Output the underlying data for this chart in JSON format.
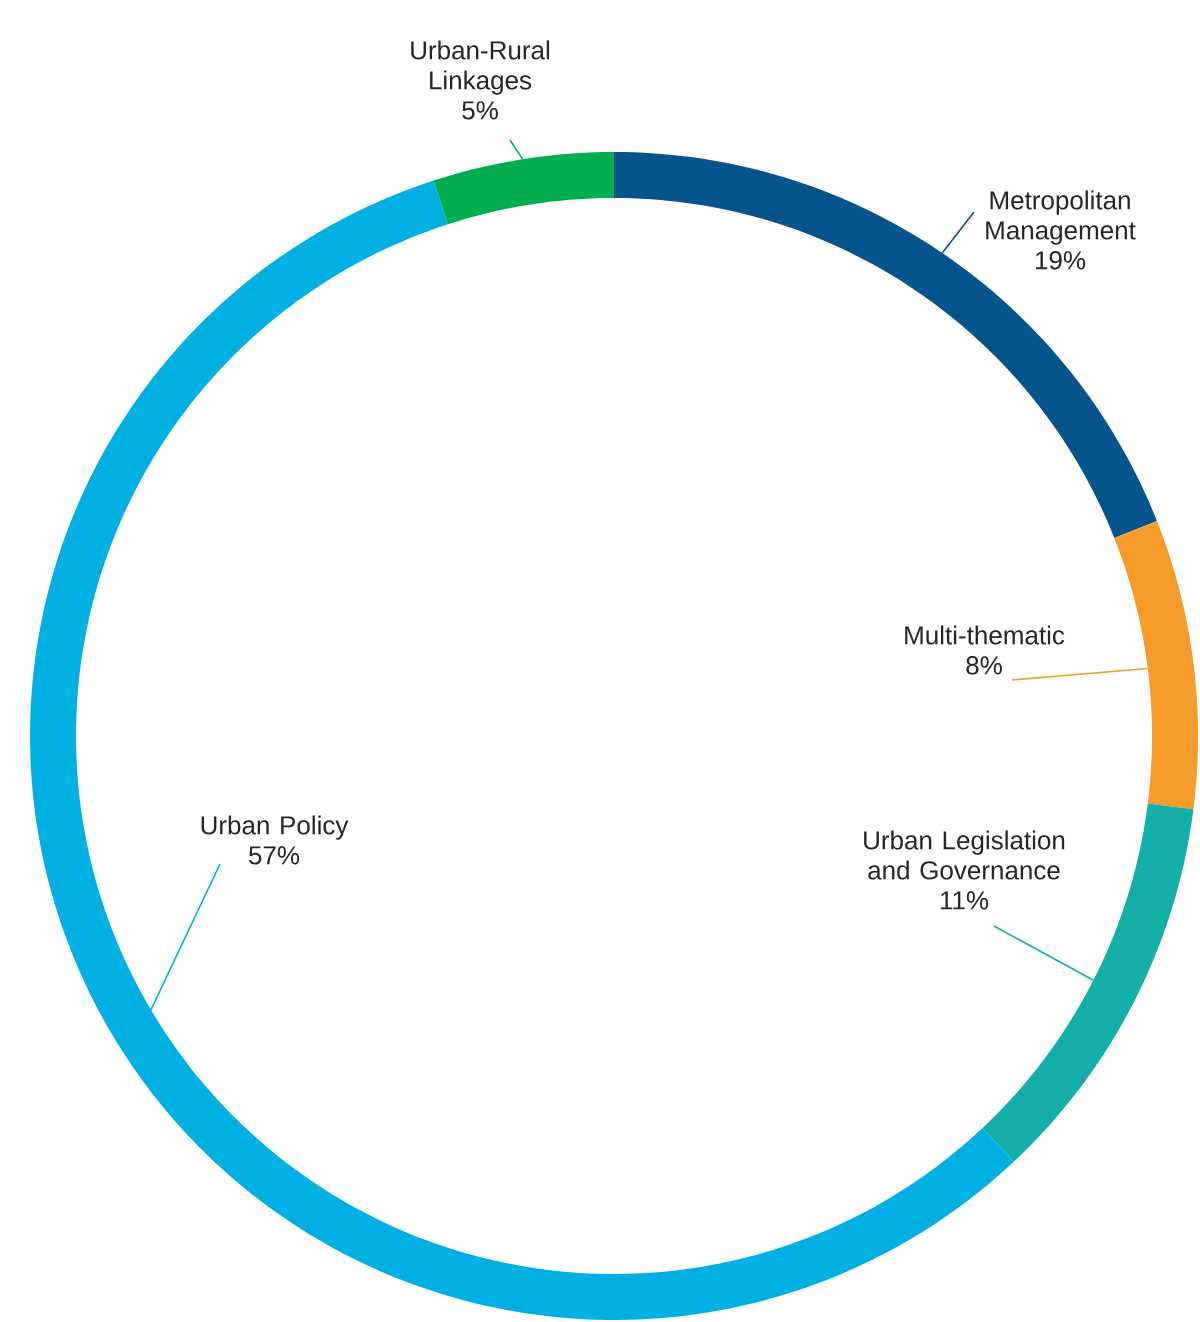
{
  "chart_data": {
    "type": "donut",
    "categories": [
      "Metropolitan Management",
      "Multi-thematic",
      "Urban Legislation and Governance",
      "Urban Policy",
      "Urban-Rural Linkages"
    ],
    "values": [
      19,
      8,
      11,
      57,
      5
    ],
    "value_labels": [
      "19%",
      "8%",
      "11%",
      "57%",
      "5%"
    ],
    "colors": [
      "#05548c",
      "#f59c2a",
      "#13afa8",
      "#00b0e3",
      "#00ae4f"
    ]
  }
}
